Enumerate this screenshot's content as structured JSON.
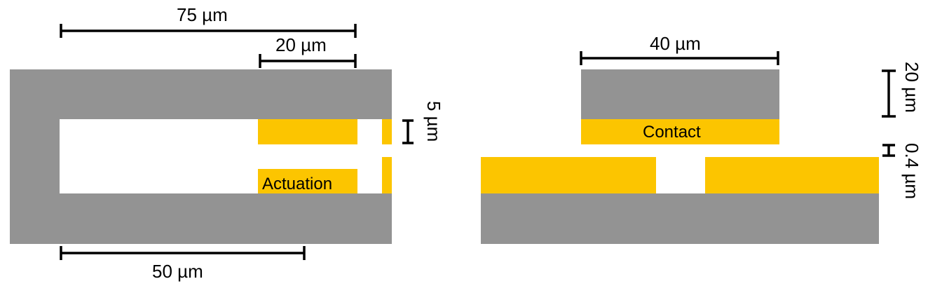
{
  "colors": {
    "substrate": "#939393",
    "metal": "#fcc500",
    "line": "#000000"
  },
  "dimensions": {
    "overall_length": "75 µm",
    "actuation_pad_length": "20 µm",
    "lower_arm_length": "50 µm",
    "gap_height": "5 µm",
    "contact_width": "40 µm",
    "contact_beam_height": "20 µm",
    "contact_gap": "0.4 µm"
  },
  "labels": {
    "actuation": "Actuation",
    "contact": "Contact"
  }
}
